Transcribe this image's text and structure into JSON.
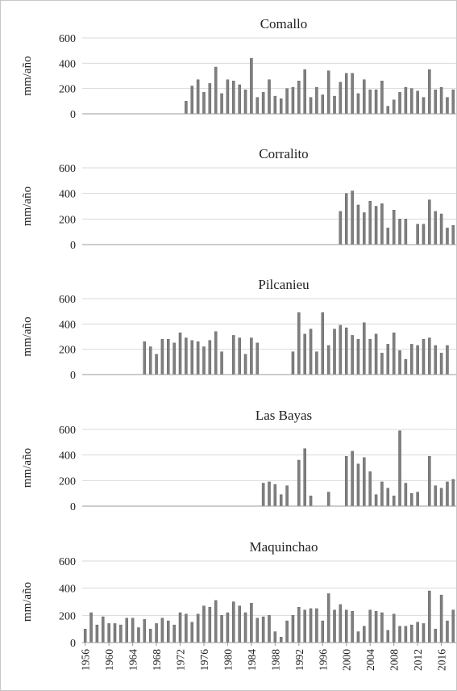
{
  "chart_data": [
    {
      "type": "bar",
      "title": "Comallo",
      "ylabel": "mm/año",
      "ylim": [
        0,
        600
      ],
      "yticks": [
        "0",
        "200",
        "400",
        "600"
      ],
      "x": [
        1956,
        1957,
        1958,
        1959,
        1960,
        1961,
        1962,
        1963,
        1964,
        1965,
        1966,
        1967,
        1968,
        1969,
        1970,
        1971,
        1972,
        1973,
        1974,
        1975,
        1976,
        1977,
        1978,
        1979,
        1980,
        1981,
        1982,
        1983,
        1984,
        1985,
        1986,
        1987,
        1988,
        1989,
        1990,
        1991,
        1992,
        1993,
        1994,
        1995,
        1996,
        1997,
        1998,
        1999,
        2000,
        2001,
        2002,
        2003,
        2004,
        2005,
        2006,
        2007,
        2008,
        2009,
        2010,
        2011,
        2012,
        2013,
        2014,
        2015,
        2016,
        2017,
        2018
      ],
      "values": [
        null,
        null,
        null,
        null,
        null,
        null,
        null,
        null,
        null,
        null,
        null,
        null,
        null,
        null,
        null,
        null,
        null,
        100,
        220,
        270,
        170,
        240,
        370,
        160,
        270,
        260,
        230,
        190,
        440,
        130,
        170,
        270,
        140,
        120,
        200,
        210,
        260,
        350,
        130,
        210,
        150,
        340,
        140,
        250,
        320,
        320,
        160,
        270,
        190,
        190,
        260,
        60,
        110,
        170,
        210,
        200,
        180,
        130,
        350,
        190,
        210,
        130,
        190
      ]
    },
    {
      "type": "bar",
      "title": "Corralito",
      "ylabel": "mm/año",
      "ylim": [
        0,
        600
      ],
      "yticks": [
        "0",
        "200",
        "400",
        "600"
      ],
      "x": [
        1956,
        1957,
        1958,
        1959,
        1960,
        1961,
        1962,
        1963,
        1964,
        1965,
        1966,
        1967,
        1968,
        1969,
        1970,
        1971,
        1972,
        1973,
        1974,
        1975,
        1976,
        1977,
        1978,
        1979,
        1980,
        1981,
        1982,
        1983,
        1984,
        1985,
        1986,
        1987,
        1988,
        1989,
        1990,
        1991,
        1992,
        1993,
        1994,
        1995,
        1996,
        1997,
        1998,
        1999,
        2000,
        2001,
        2002,
        2003,
        2004,
        2005,
        2006,
        2007,
        2008,
        2009,
        2010,
        2011,
        2012,
        2013,
        2014,
        2015,
        2016,
        2017,
        2018
      ],
      "values": [
        null,
        null,
        null,
        null,
        null,
        null,
        null,
        null,
        null,
        null,
        null,
        null,
        null,
        null,
        null,
        null,
        null,
        null,
        null,
        null,
        null,
        null,
        null,
        null,
        null,
        null,
        null,
        null,
        null,
        null,
        null,
        null,
        null,
        null,
        null,
        null,
        null,
        null,
        null,
        null,
        null,
        null,
        null,
        260,
        400,
        420,
        310,
        250,
        340,
        300,
        320,
        130,
        270,
        200,
        200,
        null,
        160,
        160,
        350,
        260,
        240,
        130,
        150
      ]
    },
    {
      "type": "bar",
      "title": "Pilcanieu",
      "ylabel": "mm/año",
      "ylim": [
        0,
        600
      ],
      "yticks": [
        "0",
        "200",
        "400",
        "600"
      ],
      "x": [
        1956,
        1957,
        1958,
        1959,
        1960,
        1961,
        1962,
        1963,
        1964,
        1965,
        1966,
        1967,
        1968,
        1969,
        1970,
        1971,
        1972,
        1973,
        1974,
        1975,
        1976,
        1977,
        1978,
        1979,
        1980,
        1981,
        1982,
        1983,
        1984,
        1985,
        1986,
        1987,
        1988,
        1989,
        1990,
        1991,
        1992,
        1993,
        1994,
        1995,
        1996,
        1997,
        1998,
        1999,
        2000,
        2001,
        2002,
        2003,
        2004,
        2005,
        2006,
        2007,
        2008,
        2009,
        2010,
        2011,
        2012,
        2013,
        2014,
        2015,
        2016,
        2017,
        2018
      ],
      "values": [
        null,
        null,
        null,
        null,
        null,
        null,
        null,
        null,
        null,
        null,
        260,
        220,
        160,
        280,
        280,
        250,
        330,
        290,
        270,
        260,
        220,
        270,
        340,
        180,
        null,
        310,
        290,
        160,
        290,
        250,
        null,
        null,
        null,
        null,
        null,
        180,
        490,
        320,
        360,
        180,
        490,
        230,
        360,
        390,
        370,
        310,
        280,
        410,
        280,
        320,
        170,
        240,
        330,
        190,
        120,
        240,
        230,
        280,
        290,
        230,
        170,
        230,
        null
      ]
    },
    {
      "type": "bar",
      "title": "Las Bayas",
      "ylabel": "mm/año",
      "ylim": [
        0,
        600
      ],
      "yticks": [
        "0",
        "200",
        "400",
        "600"
      ],
      "x": [
        1956,
        1957,
        1958,
        1959,
        1960,
        1961,
        1962,
        1963,
        1964,
        1965,
        1966,
        1967,
        1968,
        1969,
        1970,
        1971,
        1972,
        1973,
        1974,
        1975,
        1976,
        1977,
        1978,
        1979,
        1980,
        1981,
        1982,
        1983,
        1984,
        1985,
        1986,
        1987,
        1988,
        1989,
        1990,
        1991,
        1992,
        1993,
        1994,
        1995,
        1996,
        1997,
        1998,
        1999,
        2000,
        2001,
        2002,
        2003,
        2004,
        2005,
        2006,
        2007,
        2008,
        2009,
        2010,
        2011,
        2012,
        2013,
        2014,
        2015,
        2016,
        2017,
        2018
      ],
      "values": [
        null,
        null,
        null,
        null,
        null,
        null,
        null,
        null,
        null,
        null,
        null,
        null,
        null,
        null,
        null,
        null,
        null,
        null,
        null,
        null,
        null,
        null,
        null,
        null,
        null,
        null,
        null,
        null,
        null,
        null,
        180,
        190,
        170,
        90,
        160,
        null,
        360,
        450,
        80,
        null,
        null,
        110,
        null,
        null,
        390,
        430,
        330,
        380,
        270,
        90,
        190,
        140,
        80,
        590,
        180,
        100,
        110,
        null,
        390,
        160,
        140,
        190,
        210
      ]
    },
    {
      "type": "bar",
      "title": "Maquinchao",
      "ylabel": "mm/año",
      "ylim": [
        0,
        600
      ],
      "yticks": [
        "0",
        "200",
        "400",
        "600"
      ],
      "x": [
        1956,
        1957,
        1958,
        1959,
        1960,
        1961,
        1962,
        1963,
        1964,
        1965,
        1966,
        1967,
        1968,
        1969,
        1970,
        1971,
        1972,
        1973,
        1974,
        1975,
        1976,
        1977,
        1978,
        1979,
        1980,
        1981,
        1982,
        1983,
        1984,
        1985,
        1986,
        1987,
        1988,
        1989,
        1990,
        1991,
        1992,
        1993,
        1994,
        1995,
        1996,
        1997,
        1998,
        1999,
        2000,
        2001,
        2002,
        2003,
        2004,
        2005,
        2006,
        2007,
        2008,
        2009,
        2010,
        2011,
        2012,
        2013,
        2014,
        2015,
        2016,
        2017,
        2018
      ],
      "values": [
        100,
        220,
        130,
        190,
        140,
        140,
        130,
        180,
        180,
        110,
        170,
        100,
        140,
        180,
        160,
        130,
        220,
        210,
        150,
        210,
        270,
        260,
        310,
        200,
        220,
        300,
        270,
        220,
        290,
        180,
        190,
        200,
        80,
        40,
        160,
        200,
        260,
        240,
        250,
        250,
        160,
        360,
        240,
        280,
        240,
        230,
        80,
        120,
        240,
        230,
        220,
        90,
        210,
        120,
        120,
        130,
        150,
        140,
        380,
        100,
        350,
        160,
        240
      ]
    }
  ],
  "x_tick_labels": [
    "1956",
    "1960",
    "1964",
    "1968",
    "1972",
    "1976",
    "1980",
    "1984",
    "1988",
    "1992",
    "1996",
    "2000",
    "2004",
    "2008",
    "2012",
    "2016"
  ]
}
